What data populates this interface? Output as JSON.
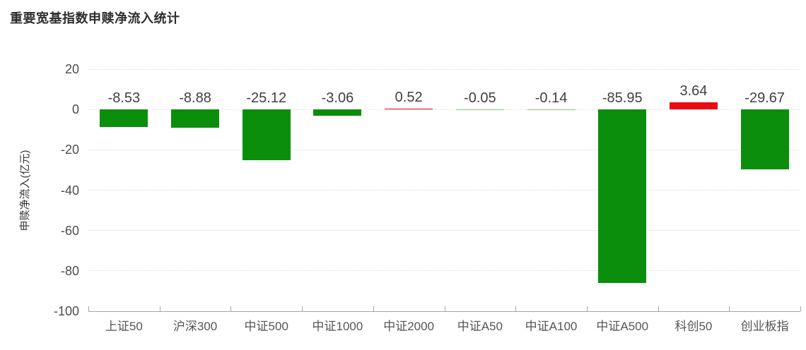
{
  "page": {
    "title": "重要宽基指数申赎净流入统计"
  },
  "chart_data": {
    "type": "bar",
    "title": "重要宽基指数申赎净流入统计",
    "categories": [
      "上证50",
      "沪深300",
      "中证500",
      "中证1000",
      "中证2000",
      "中证A50",
      "中证A100",
      "中证A500",
      "科创50",
      "创业板指"
    ],
    "values": [
      -8.53,
      -8.88,
      -25.12,
      -3.06,
      0.52,
      -0.05,
      -0.14,
      -85.95,
      3.64,
      -29.67
    ],
    "value_labels": [
      "-8.53",
      "-8.88",
      "-25.12",
      "-3.06",
      "0.52",
      "-0.05",
      "-0.14",
      "-85.95",
      "3.64",
      "-29.67"
    ],
    "xlabel": "",
    "ylabel": "申赎净流入(亿元)",
    "ylim": [
      -100,
      20
    ],
    "yticks": [
      20,
      0,
      -20,
      -40,
      -60,
      -80,
      -100
    ],
    "grid": true,
    "legend_position": "none",
    "colors": {
      "negative_bar": "#0b8e0b",
      "positive_bar": "#ea0b14",
      "grid": "#dddddd",
      "axis": "#a6a6a6",
      "value_label": "#404040",
      "tick_label": "#4d4d4d",
      "title": "#2e2e2e"
    }
  }
}
